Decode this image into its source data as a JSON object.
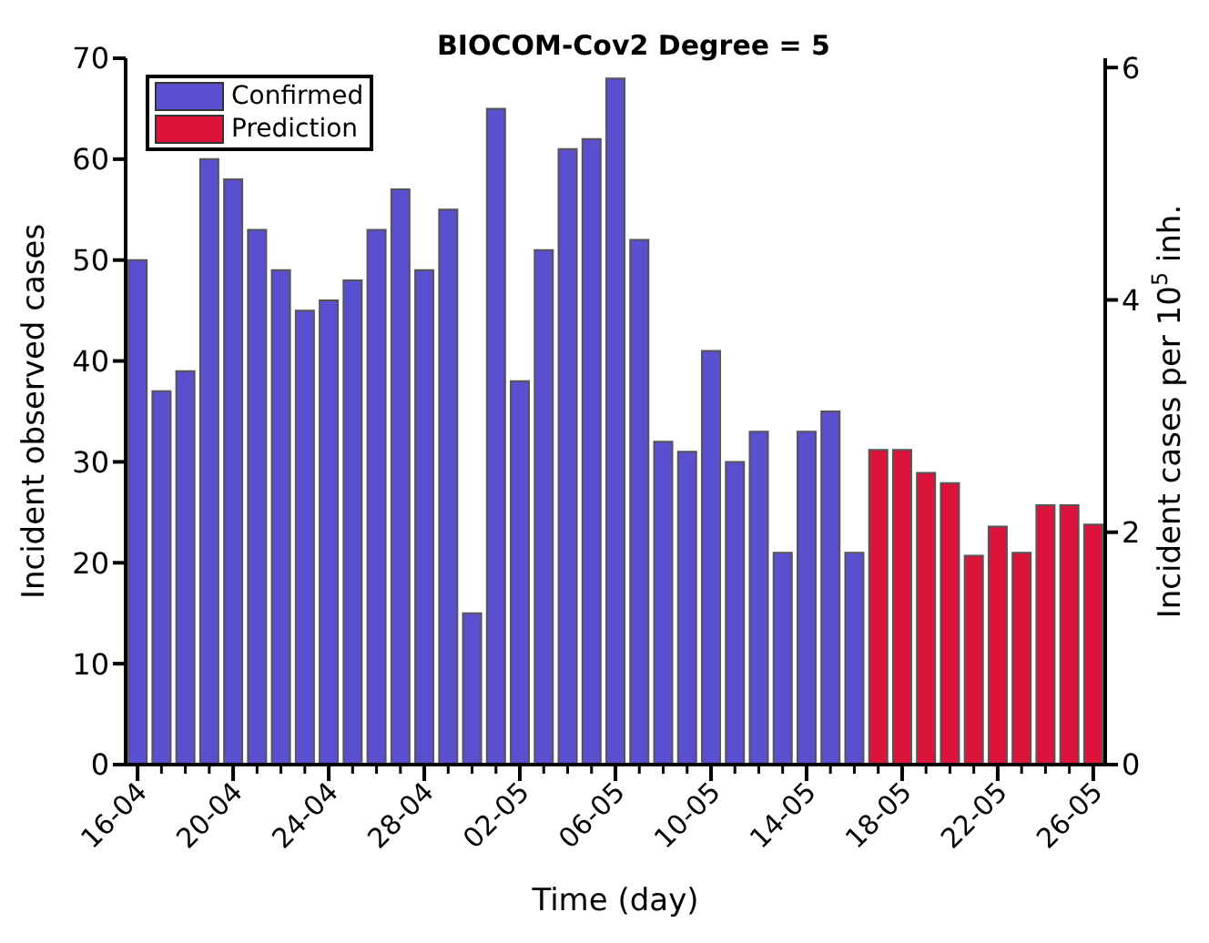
{
  "chart_data": {
    "type": "bar",
    "title": "BIOCOM-Cov2 Degree = 5",
    "xlabel": "Time (day)",
    "ylabel": "Incident observed cases",
    "y2label": "Incident cases per 10$^{5}$ inh.",
    "categories": [
      "16-04",
      null,
      null,
      null,
      "20-04",
      null,
      null,
      null,
      "24-04",
      null,
      null,
      null,
      "28-04",
      null,
      null,
      null,
      "02-05",
      null,
      null,
      null,
      "06-05",
      null,
      null,
      null,
      "10-05",
      null,
      null,
      null,
      "14-05",
      null,
      null,
      null,
      "18-05",
      null,
      null,
      null,
      "22-05",
      null,
      null,
      null,
      "26-05"
    ],
    "series": [
      {
        "name": "Confirmed",
        "color": "#5a4fcf",
        "values": [
          50,
          37,
          39,
          60,
          58,
          53,
          49,
          45,
          46,
          48,
          53,
          57,
          49,
          55,
          15,
          65,
          38,
          51,
          61,
          62,
          68,
          52,
          32,
          31,
          41,
          30,
          33,
          21,
          33,
          35,
          21,
          null,
          null,
          null,
          null,
          null,
          null,
          null,
          null,
          null,
          null
        ]
      },
      {
        "name": "Prediction",
        "color": "#dc143c",
        "values": [
          null,
          null,
          null,
          null,
          null,
          null,
          null,
          null,
          null,
          null,
          null,
          null,
          null,
          null,
          null,
          null,
          null,
          null,
          null,
          null,
          null,
          null,
          null,
          null,
          null,
          null,
          null,
          null,
          null,
          null,
          null,
          31.2,
          31.2,
          28.9,
          27.9,
          20.7,
          23.6,
          21.0,
          25.7,
          25.7,
          23.8
        ]
      }
    ],
    "stacked": true,
    "ylim": [
      0,
      70
    ],
    "yticks": [
      0,
      10,
      20,
      30,
      40,
      50,
      60,
      70
    ],
    "y2lim": [
      0,
      6.08
    ],
    "y2ticks": [
      0,
      2,
      4,
      6
    ],
    "legend": "top left"
  }
}
